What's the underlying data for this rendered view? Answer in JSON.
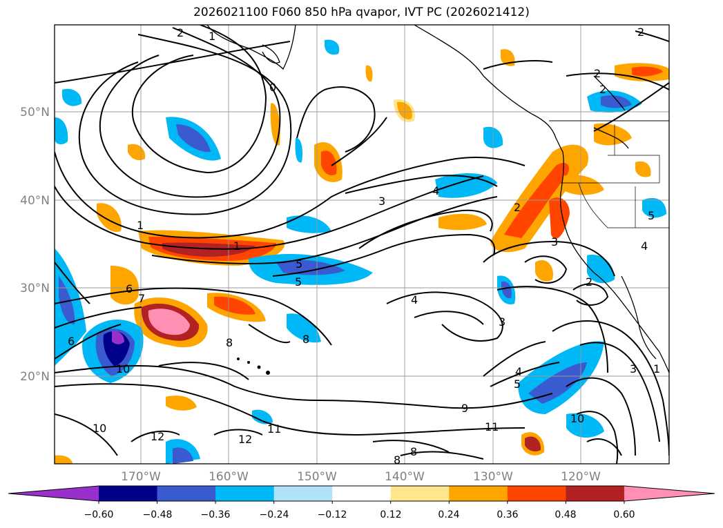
{
  "title": "2026021100 F060 850 hPa qvapor, IVT PC (2026021412)",
  "lat_ticks": [
    "50°N",
    "40°N",
    "30°N",
    "20°N"
  ],
  "lon_ticks": [
    "170°W",
    "160°W",
    "150°W",
    "140°W",
    "130°W",
    "120°W"
  ],
  "colorbar": {
    "colors": [
      "#9a30cc",
      "#00008b",
      "#3a5bd0",
      "#00b8f5",
      "#b0e2f8",
      "#ffffff",
      "#ffe68c",
      "#ffa500",
      "#ff4500",
      "#b22222",
      "#ff8fb3"
    ],
    "tick_labels": [
      "−0.60",
      "−0.48",
      "−0.36",
      "−0.24",
      "−0.12",
      "0.12",
      "0.24",
      "0.36",
      "0.48",
      "0.60"
    ]
  },
  "contour_labels": [
    "2",
    "1",
    "0",
    "2",
    "2",
    "1",
    "1",
    "3",
    "4",
    "5",
    "5",
    "6",
    "7",
    "6",
    "8",
    "8",
    "10",
    "10",
    "12",
    "12",
    "11",
    "9",
    "11",
    "4",
    "3",
    "4",
    "5",
    "2",
    "2",
    "3",
    "2",
    "5",
    "4",
    "10",
    "1",
    "3",
    "8",
    "8"
  ]
}
